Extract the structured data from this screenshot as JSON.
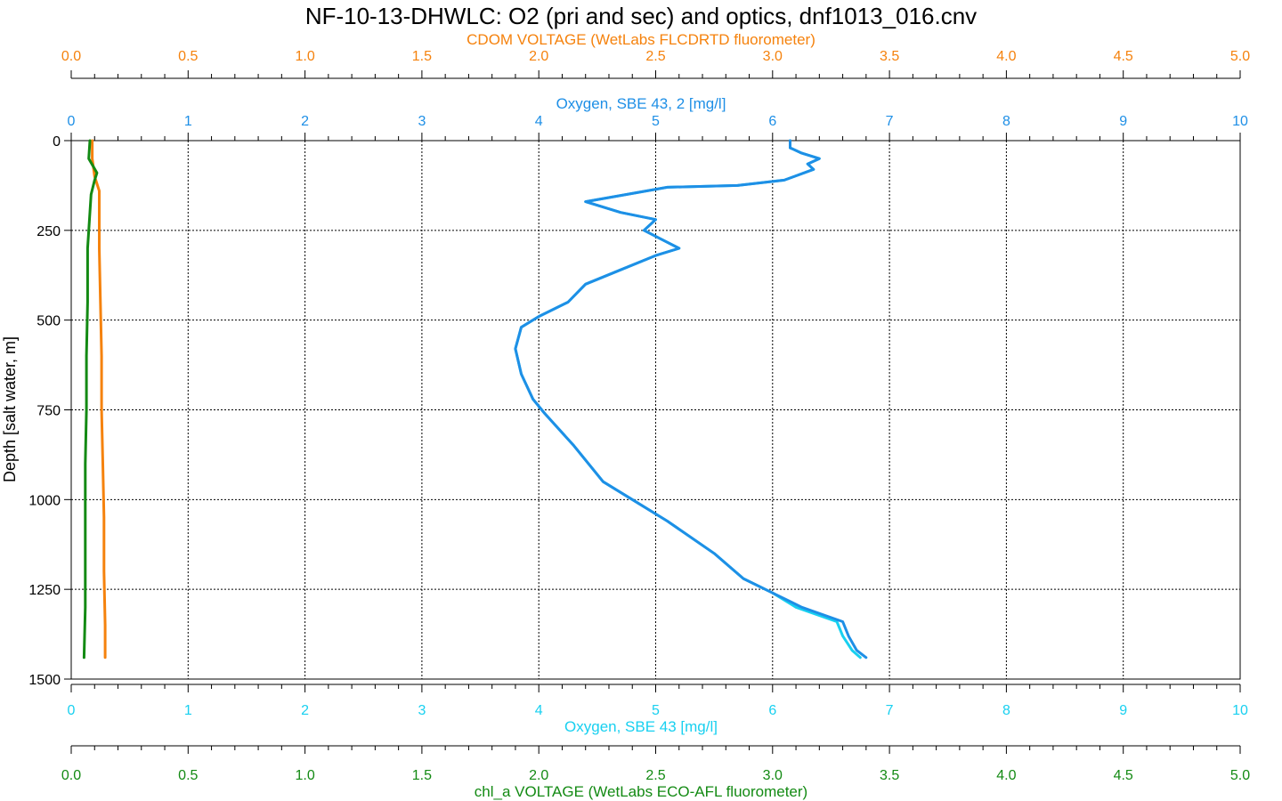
{
  "chart_data": {
    "type": "line",
    "title": "NF-10-13-DHWLC: O2 (pri and sec) and optics, dnf1013_016.cnv",
    "y_axis": {
      "label": "Depth [salt water, m]",
      "range": [
        0,
        1500
      ],
      "inverted": true,
      "ticks": [
        0,
        250,
        500,
        750,
        1000,
        1250,
        1500
      ],
      "grid": true
    },
    "x_axes": [
      {
        "id": "cdom",
        "position": "top-outer",
        "label": "CDOM VOLTAGE (WetLabs FLCDRTD fluorometer)",
        "range": [
          0,
          5
        ],
        "ticks": [
          "0.0",
          "0.5",
          "1.0",
          "1.5",
          "2.0",
          "2.5",
          "3.0",
          "3.5",
          "4.0",
          "4.5",
          "5.0"
        ],
        "color": "#F5820D"
      },
      {
        "id": "oxy2",
        "position": "top-inner",
        "label": "Oxygen, SBE 43, 2 [mg/l]",
        "range": [
          0,
          10
        ],
        "ticks": [
          "0",
          "1",
          "2",
          "3",
          "4",
          "5",
          "6",
          "7",
          "8",
          "9",
          "10"
        ],
        "color": "#1E8FE6"
      },
      {
        "id": "oxy1",
        "position": "bottom-inner",
        "label": "Oxygen, SBE 43 [mg/l]",
        "range": [
          0,
          10
        ],
        "ticks": [
          "0",
          "1",
          "2",
          "3",
          "4",
          "5",
          "6",
          "7",
          "8",
          "9",
          "10"
        ],
        "color": "#18D0F0"
      },
      {
        "id": "chl",
        "position": "bottom-outer",
        "label": "chl_a VOLTAGE (WetLabs ECO-AFL fluorometer)",
        "range": [
          0,
          5
        ],
        "ticks": [
          "0.0",
          "0.5",
          "1.0",
          "1.5",
          "2.0",
          "2.5",
          "3.0",
          "3.5",
          "4.0",
          "4.5",
          "5.0"
        ],
        "color": "#138A13"
      }
    ],
    "grid": true,
    "series": [
      {
        "axis": "oxy1",
        "color": "#18D0F0",
        "points": [
          [
            6.15,
            0
          ],
          [
            6.15,
            20
          ],
          [
            6.25,
            35
          ],
          [
            6.4,
            50
          ],
          [
            6.3,
            65
          ],
          [
            6.35,
            80
          ],
          [
            6.1,
            110
          ],
          [
            5.7,
            125
          ],
          [
            5.1,
            130
          ],
          [
            4.75,
            150
          ],
          [
            4.4,
            170
          ],
          [
            4.7,
            200
          ],
          [
            5.0,
            220
          ],
          [
            4.9,
            250
          ],
          [
            5.05,
            275
          ],
          [
            5.2,
            300
          ],
          [
            5.0,
            320
          ],
          [
            4.7,
            360
          ],
          [
            4.4,
            400
          ],
          [
            4.25,
            450
          ],
          [
            4.0,
            490
          ],
          [
            3.85,
            520
          ],
          [
            3.8,
            580
          ],
          [
            3.85,
            650
          ],
          [
            3.95,
            720
          ],
          [
            4.05,
            760
          ],
          [
            4.3,
            850
          ],
          [
            4.55,
            950
          ],
          [
            4.8,
            1000
          ],
          [
            5.1,
            1060
          ],
          [
            5.5,
            1150
          ],
          [
            5.75,
            1220
          ],
          [
            6.0,
            1260
          ],
          [
            6.2,
            1300
          ],
          [
            6.55,
            1340
          ],
          [
            6.6,
            1380
          ],
          [
            6.68,
            1420
          ],
          [
            6.75,
            1440
          ]
        ]
      },
      {
        "axis": "oxy2",
        "color": "#1E8FE6",
        "points": [
          [
            6.15,
            0
          ],
          [
            6.15,
            20
          ],
          [
            6.25,
            35
          ],
          [
            6.4,
            50
          ],
          [
            6.3,
            65
          ],
          [
            6.35,
            80
          ],
          [
            6.1,
            110
          ],
          [
            5.7,
            125
          ],
          [
            5.1,
            130
          ],
          [
            4.75,
            150
          ],
          [
            4.4,
            170
          ],
          [
            4.7,
            200
          ],
          [
            5.0,
            220
          ],
          [
            4.9,
            250
          ],
          [
            5.05,
            275
          ],
          [
            5.2,
            300
          ],
          [
            5.0,
            320
          ],
          [
            4.7,
            360
          ],
          [
            4.4,
            400
          ],
          [
            4.25,
            450
          ],
          [
            4.0,
            490
          ],
          [
            3.85,
            520
          ],
          [
            3.8,
            580
          ],
          [
            3.85,
            650
          ],
          [
            3.95,
            720
          ],
          [
            4.05,
            760
          ],
          [
            4.3,
            850
          ],
          [
            4.55,
            950
          ],
          [
            4.8,
            1000
          ],
          [
            5.1,
            1060
          ],
          [
            5.5,
            1150
          ],
          [
            5.75,
            1220
          ],
          [
            6.0,
            1260
          ],
          [
            6.25,
            1300
          ],
          [
            6.6,
            1340
          ],
          [
            6.65,
            1380
          ],
          [
            6.72,
            1420
          ],
          [
            6.8,
            1440
          ]
        ]
      },
      {
        "axis": "cdom",
        "color": "#F5820D",
        "points": [
          [
            0.09,
            0
          ],
          [
            0.09,
            50
          ],
          [
            0.1,
            100
          ],
          [
            0.12,
            140
          ],
          [
            0.12,
            200
          ],
          [
            0.12,
            300
          ],
          [
            0.125,
            450
          ],
          [
            0.13,
            600
          ],
          [
            0.13,
            750
          ],
          [
            0.135,
            900
          ],
          [
            0.14,
            1050
          ],
          [
            0.14,
            1200
          ],
          [
            0.145,
            1350
          ],
          [
            0.145,
            1440
          ]
        ]
      },
      {
        "axis": "chl",
        "color": "#138A13",
        "points": [
          [
            0.08,
            0
          ],
          [
            0.075,
            50
          ],
          [
            0.11,
            90
          ],
          [
            0.1,
            110
          ],
          [
            0.085,
            150
          ],
          [
            0.08,
            200
          ],
          [
            0.07,
            300
          ],
          [
            0.07,
            450
          ],
          [
            0.065,
            600
          ],
          [
            0.065,
            750
          ],
          [
            0.06,
            900
          ],
          [
            0.06,
            1050
          ],
          [
            0.06,
            1200
          ],
          [
            0.06,
            1300
          ],
          [
            0.055,
            1440
          ]
        ]
      }
    ]
  }
}
